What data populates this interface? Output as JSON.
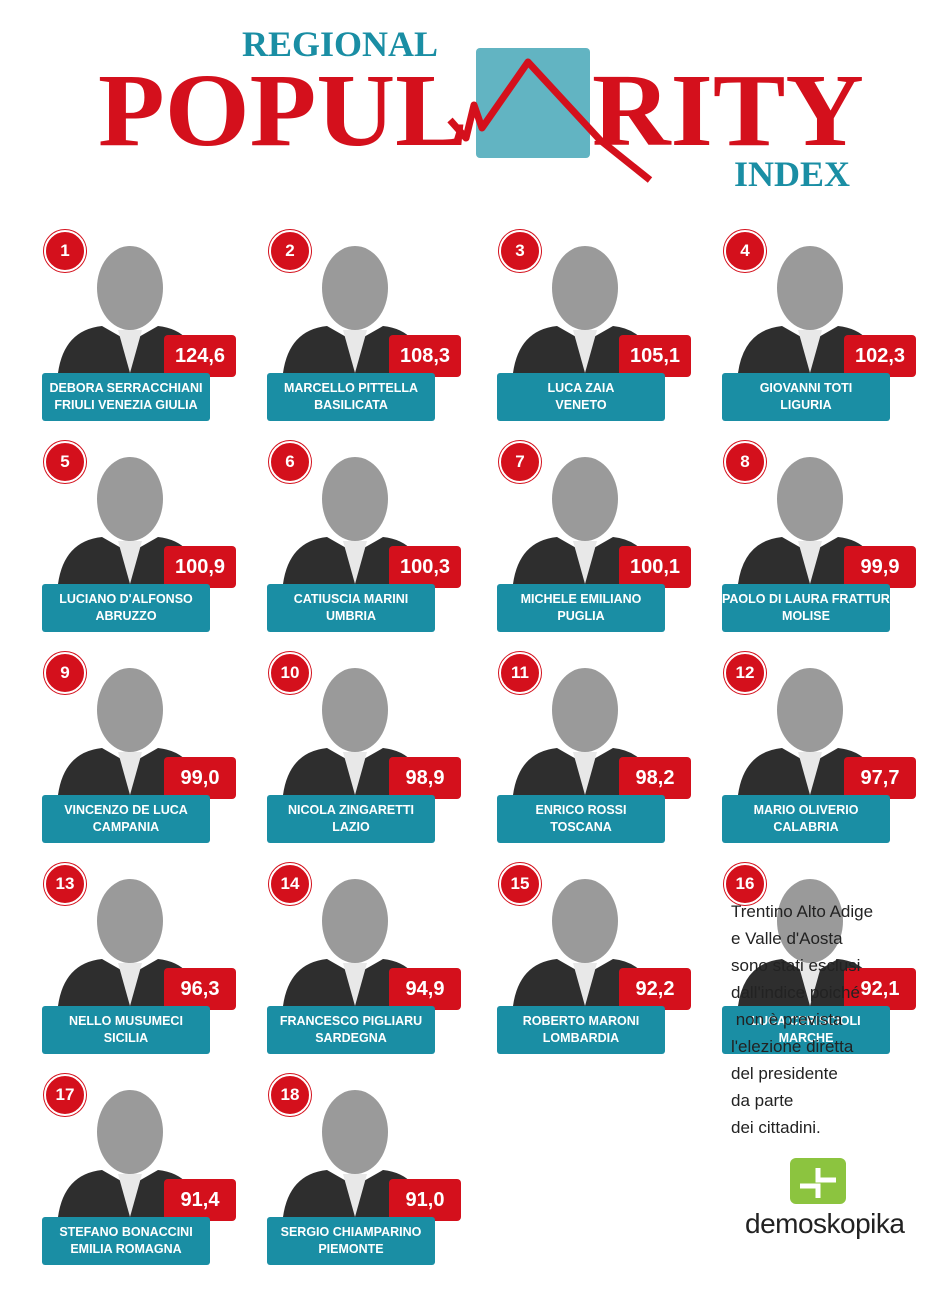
{
  "header": {
    "kicker": "REGIONAL",
    "title_left": "POPUL",
    "title_right": "RITY",
    "subtitle": "INDEX"
  },
  "entries": [
    {
      "rank": 1,
      "score": "124,6",
      "name": "DEBORA SERRACCHIANI",
      "region": "FRIULI VENEZIA GIULIA"
    },
    {
      "rank": 2,
      "score": "108,3",
      "name": "MARCELLO PITTELLA",
      "region": "BASILICATA"
    },
    {
      "rank": 3,
      "score": "105,1",
      "name": "LUCA ZAIA",
      "region": "VENETO"
    },
    {
      "rank": 4,
      "score": "102,3",
      "name": "GIOVANNI TOTI",
      "region": "LIGURIA"
    },
    {
      "rank": 5,
      "score": "100,9",
      "name": "LUCIANO D'ALFONSO",
      "region": "ABRUZZO"
    },
    {
      "rank": 6,
      "score": "100,3",
      "name": "CATIUSCIA MARINI",
      "region": "UMBRIA"
    },
    {
      "rank": 7,
      "score": "100,1",
      "name": "MICHELE EMILIANO",
      "region": "PUGLIA"
    },
    {
      "rank": 8,
      "score": "99,9",
      "name": "PAOLO DI LAURA FRATTURA",
      "region": "MOLISE"
    },
    {
      "rank": 9,
      "score": "99,0",
      "name": "VINCENZO DE LUCA",
      "region": "CAMPANIA"
    },
    {
      "rank": 10,
      "score": "98,9",
      "name": "NICOLA ZINGARETTI",
      "region": "LAZIO"
    },
    {
      "rank": 11,
      "score": "98,2",
      "name": "ENRICO ROSSI",
      "region": "TOSCANA"
    },
    {
      "rank": 12,
      "score": "97,7",
      "name": "MARIO OLIVERIO",
      "region": "CALABRIA"
    },
    {
      "rank": 13,
      "score": "96,3",
      "name": "NELLO MUSUMECI",
      "region": "SICILIA"
    },
    {
      "rank": 14,
      "score": "94,9",
      "name": "FRANCESCO PIGLIARU",
      "region": "SARDEGNA"
    },
    {
      "rank": 15,
      "score": "92,2",
      "name": "ROBERTO MARONI",
      "region": "LOMBARDIA"
    },
    {
      "rank": 16,
      "score": "92,1",
      "name": "LUCA CERISCIOLI",
      "region": "MARCHE"
    },
    {
      "rank": 17,
      "score": "91,4",
      "name": "STEFANO BONACCINI",
      "region": "EMILIA ROMAGNA"
    },
    {
      "rank": 18,
      "score": "91,0",
      "name": "SERGIO CHIAMPARINO",
      "region": "PIEMONTE"
    }
  ],
  "note": [
    "Trentino Alto Adige",
    "e Valle d'Aosta",
    "sono stati esclusi",
    "dall'indice poiché",
    " non è prevista",
    "l'elezione diretta",
    "del presidente",
    "da parte",
    "dei cittadini."
  ],
  "logo": "demoskopika"
}
